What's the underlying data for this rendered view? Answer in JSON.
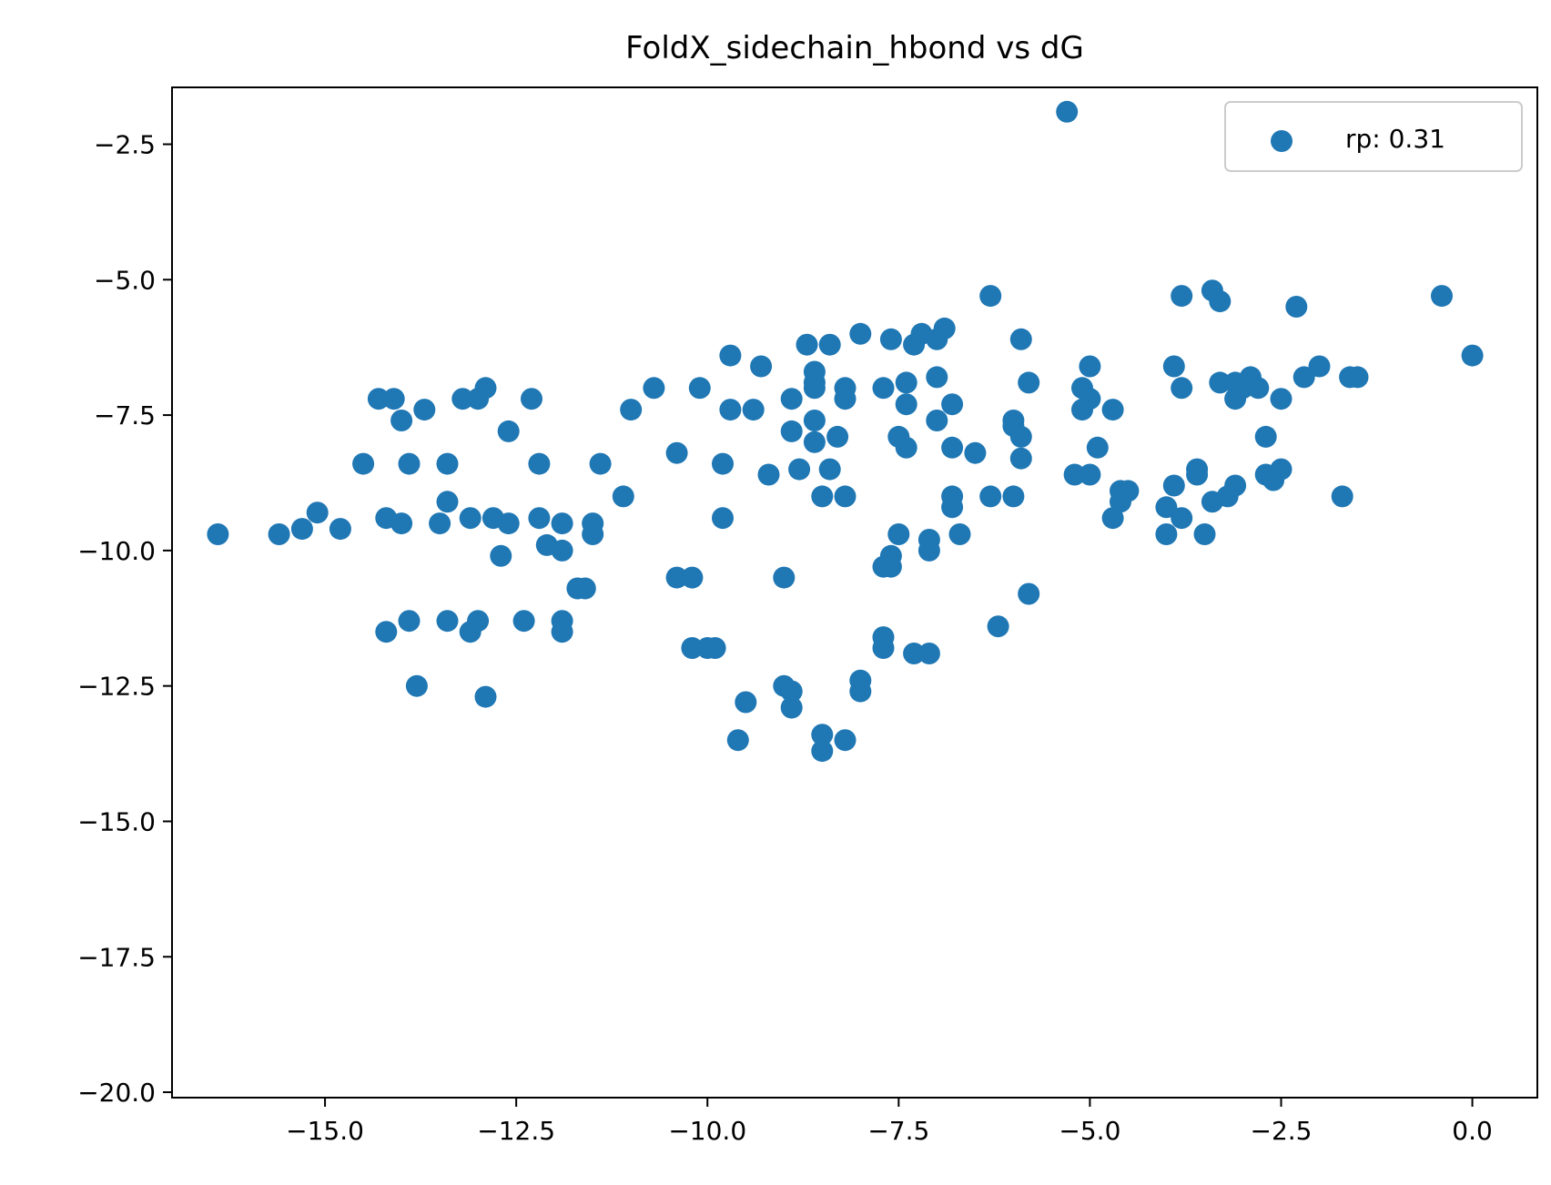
{
  "chart_data": {
    "type": "scatter",
    "title": "FoldX_sidechain_hbond vs dG",
    "xlabel": "",
    "ylabel": "",
    "xlim": [
      -17.0,
      0.85
    ],
    "ylim": [
      -20.1,
      -1.45
    ],
    "xticks": [
      -15.0,
      -12.5,
      -10.0,
      -7.5,
      -5.0,
      -2.5,
      0.0
    ],
    "xtick_labels": [
      "−15.0",
      "−12.5",
      "−10.0",
      "−7.5",
      "−5.0",
      "−2.5",
      "0.0"
    ],
    "yticks": [
      -2.5,
      -5.0,
      -7.5,
      -10.0,
      -12.5,
      -15.0,
      -17.5,
      -20.0
    ],
    "ytick_labels": [
      "−2.5",
      "−5.0",
      "−7.5",
      "−10.0",
      "−12.5",
      "−15.0",
      "−17.5",
      "−20.0"
    ],
    "grid": false,
    "legend": {
      "position": "top-right",
      "entries": [
        {
          "label": "rp: 0.31",
          "color": "#1f77b4"
        }
      ]
    },
    "series": [
      {
        "name": "rp: 0.31",
        "color": "#1f77b4",
        "points": [
          [
            -16.4,
            -9.7
          ],
          [
            -15.6,
            -9.7
          ],
          [
            -15.3,
            -9.6
          ],
          [
            -15.1,
            -9.3
          ],
          [
            -14.8,
            -9.6
          ],
          [
            -14.5,
            -8.4
          ],
          [
            -14.3,
            -7.2
          ],
          [
            -14.2,
            -9.4
          ],
          [
            -14.2,
            -11.5
          ],
          [
            -14.1,
            -7.2
          ],
          [
            -14.0,
            -7.6
          ],
          [
            -14.0,
            -9.5
          ],
          [
            -13.9,
            -8.4
          ],
          [
            -13.9,
            -11.3
          ],
          [
            -13.8,
            -12.5
          ],
          [
            -13.7,
            -7.4
          ],
          [
            -13.5,
            -9.5
          ],
          [
            -13.4,
            -9.1
          ],
          [
            -13.4,
            -8.4
          ],
          [
            -13.4,
            -11.3
          ],
          [
            -13.2,
            -7.2
          ],
          [
            -13.1,
            -9.4
          ],
          [
            -13.1,
            -11.5
          ],
          [
            -13.0,
            -11.3
          ],
          [
            -13.0,
            -7.2
          ],
          [
            -12.9,
            -7.0
          ],
          [
            -12.9,
            -12.7
          ],
          [
            -12.8,
            -9.4
          ],
          [
            -12.7,
            -10.1
          ],
          [
            -12.6,
            -7.8
          ],
          [
            -12.6,
            -9.5
          ],
          [
            -12.4,
            -11.3
          ],
          [
            -12.3,
            -7.2
          ],
          [
            -12.2,
            -8.4
          ],
          [
            -12.2,
            -9.4
          ],
          [
            -12.1,
            -9.9
          ],
          [
            -11.9,
            -10.0
          ],
          [
            -11.9,
            -11.3
          ],
          [
            -11.9,
            -11.5
          ],
          [
            -11.9,
            -9.5
          ],
          [
            -11.7,
            -10.7
          ],
          [
            -11.6,
            -10.7
          ],
          [
            -11.5,
            -9.7
          ],
          [
            -11.5,
            -9.5
          ],
          [
            -11.4,
            -8.4
          ],
          [
            -11.1,
            -9.0
          ],
          [
            -11.0,
            -7.4
          ],
          [
            -10.7,
            -7.0
          ],
          [
            -10.4,
            -10.5
          ],
          [
            -10.4,
            -8.2
          ],
          [
            -10.2,
            -11.8
          ],
          [
            -10.2,
            -10.5
          ],
          [
            -10.1,
            -7.0
          ],
          [
            -10.0,
            -11.8
          ],
          [
            -9.9,
            -11.8
          ],
          [
            -9.8,
            -8.4
          ],
          [
            -9.8,
            -9.4
          ],
          [
            -9.7,
            -6.4
          ],
          [
            -9.7,
            -7.4
          ],
          [
            -9.6,
            -13.5
          ],
          [
            -9.5,
            -12.8
          ],
          [
            -9.4,
            -7.4
          ],
          [
            -9.3,
            -6.6
          ],
          [
            -9.2,
            -8.6
          ],
          [
            -9.0,
            -10.5
          ],
          [
            -9.0,
            -12.5
          ],
          [
            -8.9,
            -7.2
          ],
          [
            -8.9,
            -12.6
          ],
          [
            -8.9,
            -12.9
          ],
          [
            -8.9,
            -7.8
          ],
          [
            -8.8,
            -8.5
          ],
          [
            -8.7,
            -6.2
          ],
          [
            -8.6,
            -7.0
          ],
          [
            -8.6,
            -7.6
          ],
          [
            -8.6,
            -8.0
          ],
          [
            -8.6,
            -6.7
          ],
          [
            -8.6,
            -6.9
          ],
          [
            -8.5,
            -9.0
          ],
          [
            -8.5,
            -13.4
          ],
          [
            -8.5,
            -13.7
          ],
          [
            -8.4,
            -6.2
          ],
          [
            -8.4,
            -8.5
          ],
          [
            -8.3,
            -7.9
          ],
          [
            -8.2,
            -13.5
          ],
          [
            -8.2,
            -9.0
          ],
          [
            -8.2,
            -7.0
          ],
          [
            -8.2,
            -7.2
          ],
          [
            -8.0,
            -6.0
          ],
          [
            -8.0,
            -12.4
          ],
          [
            -8.0,
            -12.6
          ],
          [
            -7.7,
            -7.0
          ],
          [
            -7.7,
            -10.3
          ],
          [
            -7.7,
            -11.8
          ],
          [
            -7.7,
            -11.6
          ],
          [
            -7.6,
            -6.1
          ],
          [
            -7.6,
            -10.1
          ],
          [
            -7.6,
            -10.3
          ],
          [
            -7.5,
            -9.7
          ],
          [
            -7.5,
            -7.9
          ],
          [
            -7.4,
            -8.1
          ],
          [
            -7.4,
            -6.9
          ],
          [
            -7.4,
            -7.3
          ],
          [
            -7.3,
            -6.2
          ],
          [
            -7.3,
            -11.9
          ],
          [
            -7.2,
            -6.0
          ],
          [
            -7.1,
            -11.9
          ],
          [
            -7.1,
            -9.8
          ],
          [
            -7.1,
            -10.0
          ],
          [
            -7.0,
            -7.6
          ],
          [
            -7.0,
            -6.8
          ],
          [
            -7.0,
            -6.1
          ],
          [
            -6.9,
            -5.9
          ],
          [
            -6.8,
            -9.0
          ],
          [
            -6.8,
            -9.2
          ],
          [
            -6.8,
            -7.3
          ],
          [
            -6.8,
            -8.1
          ],
          [
            -6.7,
            -9.7
          ],
          [
            -6.5,
            -8.2
          ],
          [
            -6.3,
            -5.3
          ],
          [
            -6.3,
            -9.0
          ],
          [
            -6.2,
            -11.4
          ],
          [
            -6.0,
            -7.6
          ],
          [
            -6.0,
            -7.7
          ],
          [
            -6.0,
            -9.0
          ],
          [
            -5.9,
            -6.1
          ],
          [
            -5.9,
            -8.3
          ],
          [
            -5.9,
            -7.9
          ],
          [
            -5.8,
            -6.9
          ],
          [
            -5.8,
            -10.8
          ],
          [
            -5.3,
            -1.9
          ],
          [
            -5.2,
            -8.6
          ],
          [
            -5.1,
            -7.4
          ],
          [
            -5.1,
            -7.0
          ],
          [
            -5.0,
            -7.2
          ],
          [
            -5.0,
            -6.6
          ],
          [
            -5.0,
            -8.6
          ],
          [
            -4.9,
            -8.1
          ],
          [
            -4.7,
            -7.4
          ],
          [
            -4.7,
            -9.4
          ],
          [
            -4.6,
            -8.9
          ],
          [
            -4.6,
            -9.1
          ],
          [
            -4.5,
            -8.9
          ],
          [
            -4.0,
            -9.7
          ],
          [
            -4.0,
            -9.2
          ],
          [
            -3.9,
            -6.6
          ],
          [
            -3.9,
            -8.8
          ],
          [
            -3.8,
            -5.3
          ],
          [
            -3.8,
            -9.4
          ],
          [
            -3.8,
            -7.0
          ],
          [
            -3.6,
            -8.6
          ],
          [
            -3.6,
            -8.5
          ],
          [
            -3.5,
            -9.7
          ],
          [
            -3.4,
            -5.2
          ],
          [
            -3.4,
            -9.1
          ],
          [
            -3.3,
            -5.4
          ],
          [
            -3.3,
            -6.9
          ],
          [
            -3.2,
            -9.0
          ],
          [
            -3.1,
            -8.8
          ],
          [
            -3.1,
            -6.9
          ],
          [
            -3.1,
            -7.2
          ],
          [
            -3.0,
            -7.0
          ],
          [
            -2.9,
            -6.8
          ],
          [
            -2.8,
            -7.0
          ],
          [
            -2.7,
            -8.6
          ],
          [
            -2.7,
            -7.9
          ],
          [
            -2.6,
            -8.7
          ],
          [
            -2.5,
            -7.2
          ],
          [
            -2.5,
            -8.5
          ],
          [
            -2.3,
            -5.5
          ],
          [
            -2.2,
            -6.8
          ],
          [
            -2.0,
            -6.6
          ],
          [
            -1.7,
            -9.0
          ],
          [
            -1.6,
            -6.8
          ],
          [
            -1.5,
            -6.8
          ],
          [
            -0.4,
            -5.3
          ],
          [
            0.0,
            -6.4
          ]
        ]
      }
    ]
  }
}
